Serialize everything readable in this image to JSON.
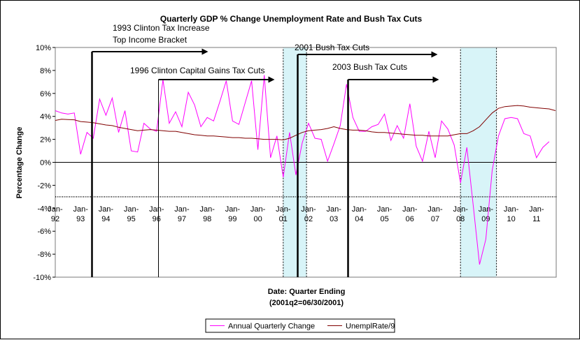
{
  "chart_data": {
    "type": "line",
    "title": "Quarterly GDP % Change Unemployment Rate and Bush Tax Cuts",
    "xlabel": "Date: Quarter Ending",
    "xlabel_note": "(2001q2=06/30/2001)",
    "ylabel": "Percentage Change",
    "ylim": [
      -10,
      10
    ],
    "yticks": [
      "10%",
      "8%",
      "6%",
      "4%",
      "2%",
      "0%",
      "-2%",
      "-4%",
      "-6%",
      "-8%",
      "-10%"
    ],
    "grid": false,
    "legend": "bottom",
    "x_tick_labels": [
      {
        "top": "Jan-",
        "bottom": "92"
      },
      {
        "top": "Jan-",
        "bottom": "93"
      },
      {
        "top": "Jan-",
        "bottom": "94"
      },
      {
        "top": "Jan-",
        "bottom": "95"
      },
      {
        "top": "Jan-",
        "bottom": "96"
      },
      {
        "top": "Jan-",
        "bottom": "97"
      },
      {
        "top": "Jan-",
        "bottom": "98"
      },
      {
        "top": "Jan-",
        "bottom": "99"
      },
      {
        "top": "Jan-",
        "bottom": "00"
      },
      {
        "top": "Jan-",
        "bottom": "01"
      },
      {
        "top": "Jan-",
        "bottom": "02"
      },
      {
        "top": "Jan-",
        "bottom": "03"
      },
      {
        "top": "Jan-",
        "bottom": "04"
      },
      {
        "top": "Jan-",
        "bottom": "05"
      },
      {
        "top": "Jan-",
        "bottom": "06"
      },
      {
        "top": "Jan-",
        "bottom": "07"
      },
      {
        "top": "Jan-",
        "bottom": "08"
      },
      {
        "top": "Jan-",
        "bottom": "09"
      },
      {
        "top": "Jan-",
        "bottom": "10"
      },
      {
        "top": "Jan-",
        "bottom": "11"
      }
    ],
    "x_start_year": 1992,
    "series": [
      {
        "name": "Annual Quarterly Change",
        "color": "#ff00ff",
        "values": [
          4.5,
          4.3,
          4.2,
          4.3,
          0.7,
          2.6,
          2.1,
          5.5,
          4.1,
          5.6,
          2.6,
          4.5,
          1.0,
          0.9,
          3.4,
          2.9,
          2.7,
          7.2,
          3.4,
          4.4,
          3.1,
          6.1,
          5.0,
          3.1,
          3.9,
          3.6,
          5.3,
          7.1,
          3.6,
          3.3,
          5.2,
          7.1,
          1.1,
          7.6,
          0.4,
          2.3,
          -1.3,
          2.6,
          -1.1,
          1.7,
          3.4,
          2.1,
          2.0,
          0.1,
          1.6,
          3.2,
          6.8,
          3.9,
          2.7,
          2.7,
          3.1,
          3.3,
          4.2,
          1.9,
          3.2,
          2.1,
          5.1,
          1.4,
          0.1,
          2.7,
          0.4,
          3.6,
          2.9,
          1.5,
          -1.8,
          1.3,
          -3.7,
          -8.9,
          -6.7,
          -0.7,
          2.3,
          3.8,
          3.9,
          3.8,
          2.5,
          2.3,
          0.4,
          1.3,
          1.8
        ]
      },
      {
        "name": "UnemplRate/9",
        "color": "#800000",
        "values": [
          3.65,
          3.75,
          3.72,
          3.7,
          3.55,
          3.5,
          3.45,
          3.35,
          3.25,
          3.2,
          3.05,
          2.95,
          2.85,
          2.75,
          2.8,
          2.85,
          2.8,
          2.75,
          2.7,
          2.7,
          2.6,
          2.5,
          2.4,
          2.35,
          2.3,
          2.3,
          2.25,
          2.2,
          2.15,
          2.15,
          2.1,
          2.1,
          2.05,
          2.0,
          2.0,
          2.0,
          1.95,
          2.1,
          2.35,
          2.6,
          2.75,
          2.8,
          2.85,
          2.95,
          3.1,
          2.95,
          2.85,
          2.8,
          2.8,
          2.75,
          2.65,
          2.6,
          2.6,
          2.55,
          2.5,
          2.45,
          2.4,
          2.35,
          2.35,
          2.3,
          2.3,
          2.3,
          2.3,
          2.4,
          2.5,
          2.5,
          2.75,
          3.1,
          3.7,
          4.3,
          4.7,
          4.85,
          4.9,
          4.95,
          4.9,
          4.8,
          4.75,
          4.7,
          4.65,
          4.5
        ]
      }
    ],
    "shaded_regions": [
      {
        "start": 2001.0,
        "end": 2001.92,
        "color": "#d8f4f8"
      },
      {
        "start": 2008.0,
        "end": 2009.42,
        "color": "#d8f4f8"
      }
    ],
    "annotations": [
      {
        "lines": [
          "1993 Clinton Tax Increase",
          "Top Income Bracket"
        ],
        "at": 1993.45
      },
      {
        "lines": [
          "1996 Clinton Capital Gains Tax Cuts"
        ],
        "at": 1996.05
      },
      {
        "lines": [
          "2001 Bush Tax Cuts"
        ],
        "at": 2001.55
      },
      {
        "lines": [
          "2003 Bush Tax Cuts"
        ],
        "at": 2003.55
      }
    ]
  }
}
